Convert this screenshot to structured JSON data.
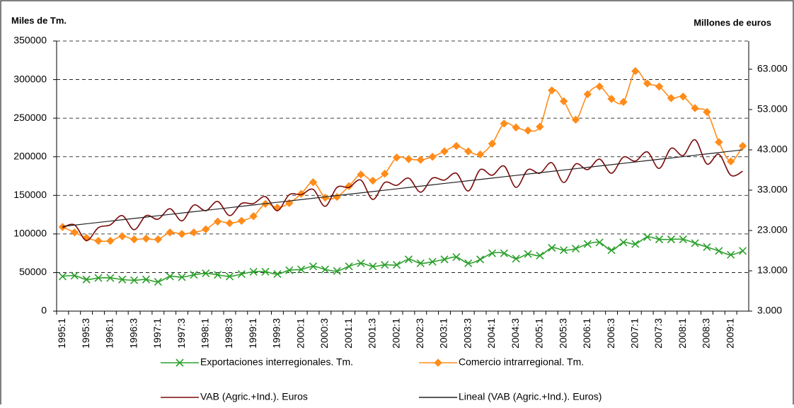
{
  "chart_data": {
    "type": "line",
    "y_axis_label": "Miles de Tm.",
    "y2_axis_label": "Millones de euros",
    "categories": [
      "1995:1",
      null,
      "1995:3",
      null,
      "1996:1",
      null,
      "1996:3",
      null,
      "1997:1",
      null,
      "1997:3",
      null,
      "1998:1",
      null,
      "1998:3",
      null,
      "1999:1",
      null,
      "1999:3",
      null,
      "2000:1",
      null,
      "2000:3",
      null,
      "2001:1",
      null,
      "2001:3",
      null,
      "2002:1",
      null,
      "2002:3",
      null,
      "2003:1",
      null,
      "2003:3",
      null,
      "2004:1",
      null,
      "2004:3",
      null,
      "2005:1",
      null,
      "2005:3",
      null,
      "2006:1",
      null,
      "2006:3",
      null,
      "2007:1",
      null,
      "2007:3",
      null,
      "2008:1",
      null,
      "2008:3",
      null,
      "2009:1",
      null
    ],
    "ylim": [
      0,
      350000
    ],
    "yticks": [
      0,
      50000,
      100000,
      150000,
      200000,
      250000,
      300000,
      350000
    ],
    "y2lim": [
      3000,
      70000
    ],
    "y2ticks": [
      {
        "value": 3000,
        "label": "3.000"
      },
      {
        "value": 13000,
        "label": "13.000"
      },
      {
        "value": 23000,
        "label": "23.000"
      },
      {
        "value": 33000,
        "label": "33.000"
      },
      {
        "value": 43000,
        "label": "43.000"
      },
      {
        "value": 53000,
        "label": "53.000"
      },
      {
        "value": 63000,
        "label": "63.000"
      }
    ],
    "grid": true,
    "legend": "bottom",
    "series": [
      {
        "name": "Exportaciones interregionales. Tm.",
        "color": "#2ca02c",
        "marker": "x",
        "smooth": true,
        "values": [
          45000,
          46000,
          41000,
          43000,
          43000,
          41000,
          40000,
          41000,
          38000,
          45000,
          44000,
          47000,
          49000,
          47000,
          45000,
          48000,
          51000,
          51000,
          48000,
          53000,
          54000,
          58000,
          54000,
          52000,
          58000,
          62000,
          58000,
          60000,
          60000,
          67000,
          62000,
          64000,
          67000,
          70000,
          62000,
          67000,
          75000,
          75000,
          68000,
          74000,
          72000,
          82000,
          79000,
          81000,
          87000,
          89000,
          79000,
          89000,
          87000,
          96000,
          93000,
          93000,
          93000,
          88000,
          83000,
          78000,
          73000,
          78000
        ]
      },
      {
        "name": "Comercio intrarregional. Tm.",
        "color": "#ff8c1a",
        "marker": "diamond",
        "smooth": true,
        "values": [
          109000,
          102000,
          95000,
          91000,
          91000,
          97000,
          93000,
          94000,
          93000,
          102000,
          100000,
          102000,
          106000,
          116000,
          114000,
          117000,
          123000,
          139000,
          134000,
          140000,
          152000,
          167000,
          147000,
          148000,
          162000,
          177000,
          169000,
          178000,
          199000,
          197000,
          196000,
          200000,
          207000,
          214000,
          207000,
          203000,
          217000,
          243000,
          238000,
          234000,
          239000,
          286000,
          272000,
          248000,
          281000,
          291000,
          275000,
          271000,
          311000,
          295000,
          291000,
          276000,
          278000,
          263000,
          258000,
          219000,
          194000,
          214000
        ]
      },
      {
        "name": "VAB (Agric.+Ind.). Euros",
        "color": "#7b0a0a",
        "marker": "none",
        "smooth": true,
        "axis": "y2",
        "values": [
          23700,
          24400,
          20500,
          23700,
          24400,
          26700,
          23200,
          26700,
          25800,
          28400,
          25400,
          29300,
          27900,
          30200,
          26700,
          29700,
          29700,
          31400,
          27900,
          31900,
          31900,
          33200,
          29000,
          33700,
          33700,
          35500,
          30700,
          34900,
          34200,
          36000,
          32500,
          36000,
          35500,
          37200,
          32800,
          38100,
          36700,
          39000,
          33700,
          38100,
          37200,
          39800,
          34900,
          39500,
          38100,
          40700,
          37200,
          41200,
          40200,
          42500,
          38400,
          43400,
          41600,
          45500,
          39500,
          41900,
          36700,
          37700
        ]
      },
      {
        "name": "Lineal (VAB (Agric.+Ind.). Euros)",
        "color": "#222222",
        "marker": "none",
        "smooth": false,
        "axis": "y2",
        "values": [
          24000,
          24333,
          24667,
          25000,
          25333,
          25667,
          26000,
          26333,
          26667,
          27000,
          27333,
          27667,
          28000,
          28333,
          28667,
          29000,
          29333,
          29667,
          30000,
          30333,
          30667,
          31000,
          31333,
          31667,
          32000,
          32333,
          32667,
          33000,
          33333,
          33667,
          34000,
          34333,
          34667,
          35000,
          35333,
          35667,
          36000,
          36333,
          36667,
          37000,
          37333,
          37667,
          38000,
          38333,
          38667,
          39000,
          39333,
          39667,
          40000,
          40333,
          40667,
          41000,
          41333,
          41667,
          42000,
          42333,
          42667,
          43000
        ]
      }
    ]
  }
}
